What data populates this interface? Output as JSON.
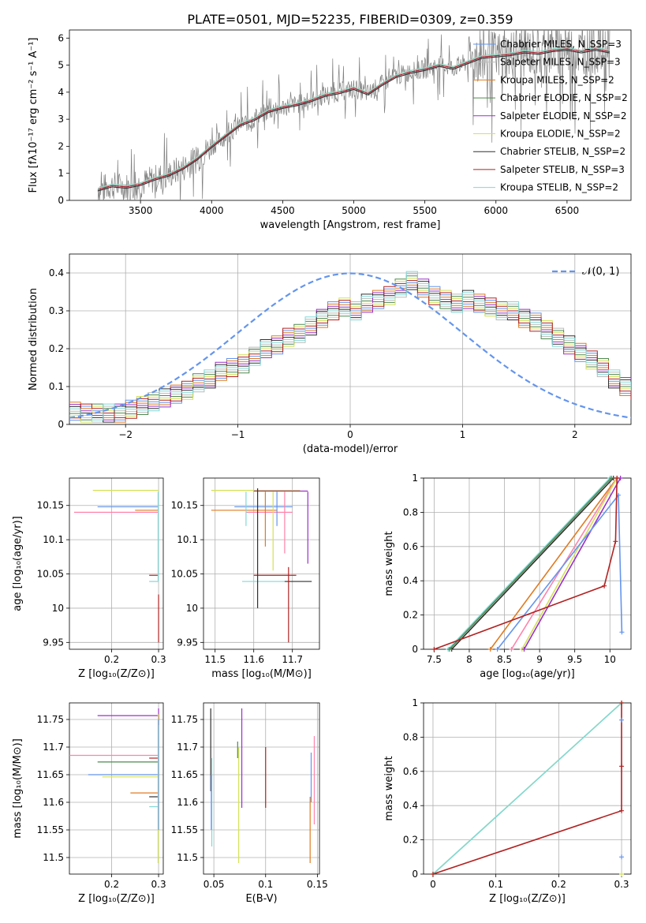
{
  "title": "PLATE=0501, MJD=52235, FIBERID=0309, z=0.359",
  "colors": {
    "Chabrier MILES": "#6495ed",
    "Salpeter MILES": "#bbbbbb",
    "Kroupa MILES": "#e07b20",
    "Chabrier ELODIE": "#4f8a4f",
    "Salpeter ELODIE": "#9b30c8",
    "Kroupa ELODIE": "#d4e157",
    "Chabrier STELIB": "#303030",
    "Salpeter STELIB": "#b22222",
    "Kroupa STELIB": "#80d8d8",
    "data": "#808080",
    "pink": "#ff82ab"
  },
  "chart_data": [
    {
      "type": "line",
      "title": "PLATE=0501, MJD=52235, FIBERID=0309, z=0.359",
      "xlabel": "wavelength [Angstrom, rest frame]",
      "ylabel": "Flux [fλ10⁻¹⁷ erg cm⁻² s⁻¹ A⁻¹]",
      "xlim": [
        3000,
        6950
      ],
      "ylim": [
        0,
        6.3
      ],
      "xticks": [
        3500,
        4000,
        4500,
        5000,
        5500,
        6000,
        6500
      ],
      "yticks": [
        0,
        1,
        2,
        3,
        4,
        5,
        6
      ],
      "legend_position": "top-right",
      "legend": [
        "Chabrier MILES, N_SSP=3",
        "Salpeter MILES, N_SSP=3",
        "Kroupa MILES, N_SSP=2",
        "Chabrier ELODIE, N_SSP=2",
        "Salpeter ELODIE, N_SSP=2",
        "Kroupa ELODIE, N_SSP=2",
        "Chabrier STELIB, N_SSP=2",
        "Salpeter STELIB, N_SSP=3",
        "Kroupa STELIB, N_SSP=2"
      ],
      "model_spectrum": {
        "x": [
          3200,
          3300,
          3400,
          3500,
          3600,
          3700,
          3800,
          3900,
          4000,
          4100,
          4200,
          4300,
          4400,
          4500,
          4600,
          4700,
          4800,
          4900,
          5000,
          5100,
          5200,
          5300,
          5400,
          5500,
          5600,
          5700,
          5800,
          5900,
          6000,
          6100,
          6200,
          6300,
          6400,
          6500,
          6600,
          6700,
          6800
        ],
        "y": [
          0.4,
          0.55,
          0.5,
          0.6,
          0.8,
          0.95,
          1.2,
          1.55,
          2.0,
          2.4,
          2.8,
          3.0,
          3.3,
          3.45,
          3.55,
          3.7,
          3.9,
          4.0,
          4.15,
          3.95,
          4.3,
          4.6,
          4.75,
          4.85,
          5.0,
          4.9,
          5.1,
          5.3,
          5.35,
          5.4,
          5.5,
          5.45,
          5.55,
          5.6,
          5.5,
          5.6,
          5.5
        ]
      }
    },
    {
      "type": "bar",
      "xlabel": "(data-model)/error",
      "ylabel": "Normed distribution",
      "xlim": [
        -2.5,
        2.5
      ],
      "ylim": [
        0,
        0.45
      ],
      "xticks": [
        -2,
        -1,
        0,
        1,
        2
      ],
      "yticks": [
        0.0,
        0.1,
        0.2,
        0.3,
        0.4
      ],
      "reference_curve": "𝒩(0, 1)",
      "legend_position": "top-right",
      "bin_width": 0.1,
      "bin_start": -2.5,
      "histogram": [
        0.035,
        0.03,
        0.03,
        0.03,
        0.03,
        0.04,
        0.05,
        0.06,
        0.07,
        0.08,
        0.09,
        0.11,
        0.12,
        0.14,
        0.15,
        0.16,
        0.18,
        0.2,
        0.21,
        0.23,
        0.24,
        0.26,
        0.28,
        0.3,
        0.31,
        0.3,
        0.32,
        0.33,
        0.34,
        0.36,
        0.38,
        0.36,
        0.34,
        0.33,
        0.32,
        0.33,
        0.32,
        0.31,
        0.3,
        0.3,
        0.28,
        0.27,
        0.25,
        0.23,
        0.21,
        0.19,
        0.17,
        0.15,
        0.12,
        0.1,
        0.09,
        0.08,
        0.07,
        0.06,
        0.05,
        0.05,
        0.04,
        0.04,
        0.03,
        0.03
      ]
    },
    {
      "type": "scatter",
      "xlabel": "Z [log₁₀(Z/Z⊙)]",
      "ylabel": "age  [log₁₀(age/yr)]",
      "xlim": [
        0.11,
        0.31
      ],
      "ylim": [
        9.94,
        10.19
      ],
      "xticks": [
        0.2,
        0.3
      ],
      "yticks": [
        9.95,
        10.0,
        10.05,
        10.1,
        10.15
      ],
      "segments": [
        {
          "c": "Kroupa ELODIE",
          "x": [
            0.16,
            0.3
          ],
          "y": 10.172
        },
        {
          "c": "Chabrier MILES",
          "x": [
            0.17,
            0.3
          ],
          "y": 10.148
        },
        {
          "c": "Kroupa MILES",
          "x": [
            0.25,
            0.3
          ],
          "y": 10.143
        },
        {
          "c": "pink",
          "x": [
            0.12,
            0.3
          ],
          "y": 10.14
        },
        {
          "c": "Salpeter STELIB",
          "x": [
            0.28,
            0.3
          ],
          "y": 10.048
        },
        {
          "c": "Kroupa STELIB",
          "x": [
            0.28,
            0.3
          ],
          "y": 10.039
        }
      ],
      "verticals": [
        {
          "c": "Kroupa STELIB",
          "x": 0.299,
          "y": [
            10.04,
            10.17
          ]
        },
        {
          "c": "Salpeter STELIB",
          "x": 0.3,
          "y": [
            9.95,
            10.02
          ]
        }
      ]
    },
    {
      "type": "scatter",
      "xlabel": "mass [log₁₀(M/M⊙)]",
      "ylabel": "",
      "xlim": [
        11.47,
        11.77
      ],
      "ylim": [
        9.94,
        10.19
      ],
      "xticks": [
        11.5,
        11.6,
        11.7
      ],
      "yticks": [
        9.95,
        10.0,
        10.05,
        10.1,
        10.15
      ],
      "segments": [
        {
          "c": "Kroupa ELODIE",
          "x": [
            11.49,
            11.72
          ],
          "y": 10.172
        },
        {
          "c": "Salpeter ELODIE",
          "x": [
            11.6,
            11.74
          ],
          "y": 10.171
        },
        {
          "c": "Chabrier MILES",
          "x": [
            11.55,
            11.7
          ],
          "y": 10.148
        },
        {
          "c": "Kroupa MILES",
          "x": [
            11.49,
            11.66
          ],
          "y": 10.143
        },
        {
          "c": "pink",
          "x": [
            11.58,
            11.7
          ],
          "y": 10.14
        },
        {
          "c": "Kroupa STELIB",
          "x": [
            11.57,
            11.7
          ],
          "y": 10.039
        },
        {
          "c": "Chabrier STELIB",
          "x": [
            11.68,
            11.75
          ],
          "y": 10.039
        },
        {
          "c": "Salpeter STELIB",
          "x": [
            11.6,
            11.71
          ],
          "y": 10.048
        }
      ],
      "verticals": [
        {
          "c": "Chabrier STELIB",
          "x": 11.61,
          "y": [
            10.0,
            10.175
          ]
        },
        {
          "c": "Salpeter STELIB",
          "x": 11.69,
          "y": [
            9.95,
            10.06
          ]
        },
        {
          "c": "Salpeter ELODIE",
          "x": 11.74,
          "y": [
            10.065,
            10.17
          ]
        },
        {
          "c": "Kroupa ELODIE",
          "x": 11.65,
          "y": [
            10.055,
            10.17
          ]
        },
        {
          "c": "Kroupa MILES",
          "x": 11.63,
          "y": [
            10.09,
            10.17
          ]
        },
        {
          "c": "pink",
          "x": 11.68,
          "y": [
            10.08,
            10.17
          ]
        },
        {
          "c": "Chabrier MILES",
          "x": 11.66,
          "y": [
            10.12,
            10.17
          ]
        },
        {
          "c": "Kroupa STELIB",
          "x": 11.58,
          "y": [
            10.12,
            10.17
          ]
        }
      ]
    },
    {
      "type": "line",
      "xlabel": "age  [log₁₀(age/yr)]",
      "ylabel": "mass weight",
      "xlim": [
        7.35,
        10.3
      ],
      "ylim": [
        0,
        1.0
      ],
      "xticks": [
        7.5,
        8.0,
        8.5,
        9.0,
        9.5,
        10.0
      ],
      "yticks": [
        0.0,
        0.2,
        0.4,
        0.6,
        0.8,
        1.0
      ],
      "series": [
        {
          "c": "Kroupa STELIB",
          "x": [
            7.7,
            10.0
          ],
          "y": [
            0.0,
            1.0
          ]
        },
        {
          "c": "Chabrier STELIB",
          "x": [
            7.75,
            10.05
          ],
          "y": [
            0.0,
            1.0
          ]
        },
        {
          "c": "Chabrier ELODIE",
          "x": [
            7.72,
            10.02
          ],
          "y": [
            0.0,
            1.0
          ]
        },
        {
          "c": "Kroupa MILES",
          "x": [
            8.3,
            10.1
          ],
          "y": [
            0.0,
            1.0
          ]
        },
        {
          "c": "pink",
          "x": [
            8.6,
            10.1
          ],
          "y": [
            0.0,
            1.0
          ]
        },
        {
          "c": "Kroupa ELODIE",
          "x": [
            8.75,
            10.1
          ],
          "y": [
            0.0,
            1.0
          ]
        },
        {
          "c": "Salpeter ELODIE",
          "x": [
            8.78,
            10.15
          ],
          "y": [
            0.0,
            1.0
          ]
        },
        {
          "c": "Chabrier MILES",
          "x": [
            8.4,
            10.12,
            10.17
          ],
          "y": [
            0.0,
            0.9,
            0.1
          ]
        },
        {
          "c": "Salpeter STELIB",
          "x": [
            7.5,
            9.92,
            10.08,
            10.1
          ],
          "y": [
            0.0,
            0.37,
            0.63,
            1.0
          ]
        }
      ]
    },
    {
      "type": "scatter",
      "xlabel": "Z [log₁₀(Z/Z⊙)]",
      "ylabel": "mass [log₁₀(M/M⊙)]",
      "xlim": [
        0.11,
        0.31
      ],
      "ylim": [
        11.47,
        11.78
      ],
      "xticks": [
        0.2,
        0.3
      ],
      "yticks": [
        11.5,
        11.55,
        11.6,
        11.65,
        11.7,
        11.75
      ],
      "segments": [
        {
          "c": "Salpeter ELODIE",
          "x": [
            0.17,
            0.3
          ],
          "y": 11.757
        },
        {
          "c": "pink",
          "x": [
            0.11,
            0.3
          ],
          "y": 11.685
        },
        {
          "c": "Salpeter STELIB",
          "x": [
            0.28,
            0.3
          ],
          "y": 11.68
        },
        {
          "c": "Chabrier ELODIE",
          "x": [
            0.17,
            0.3
          ],
          "y": 11.673
        },
        {
          "c": "Chabrier MILES",
          "x": [
            0.15,
            0.3
          ],
          "y": 11.65
        },
        {
          "c": "Kroupa ELODIE",
          "x": [
            0.18,
            0.3
          ],
          "y": 11.646
        },
        {
          "c": "Kroupa MILES",
          "x": [
            0.24,
            0.3
          ],
          "y": 11.617
        },
        {
          "c": "Chabrier STELIB",
          "x": [
            0.28,
            0.3
          ],
          "y": 11.61
        },
        {
          "c": "Kroupa STELIB",
          "x": [
            0.28,
            0.3
          ],
          "y": 11.592
        }
      ],
      "verticals": [
        {
          "c": "Salpeter ELODIE",
          "x": 0.3,
          "y": [
            11.74,
            11.77
          ]
        },
        {
          "c": "Kroupa ELODIE",
          "x": 0.299,
          "y": [
            11.49,
            11.76
          ]
        },
        {
          "c": "Chabrier MILES",
          "x": 0.3,
          "y": [
            11.55,
            11.75
          ]
        }
      ]
    },
    {
      "type": "scatter",
      "xlabel": "E(B-V)",
      "ylabel": "",
      "xlim": [
        0.04,
        0.152
      ],
      "ylim": [
        11.47,
        11.78
      ],
      "xticks": [
        0.05,
        0.1,
        0.15
      ],
      "yticks": [
        11.5,
        11.55,
        11.6,
        11.65,
        11.7,
        11.75
      ],
      "verticals": [
        {
          "c": "Chabrier STELIB",
          "x": 0.047,
          "y": [
            11.62,
            11.77
          ]
        },
        {
          "c": "Kroupa STELIB",
          "x": 0.048,
          "y": [
            11.52,
            11.68
          ]
        },
        {
          "c": "Chabrier MILES",
          "x": 0.0475,
          "y": [
            11.55,
            11.65
          ]
        },
        {
          "c": "Chabrier ELODIE",
          "x": 0.073,
          "y": [
            11.68,
            11.71
          ]
        },
        {
          "c": "Kroupa ELODIE",
          "x": 0.074,
          "y": [
            11.49,
            11.7
          ]
        },
        {
          "c": "Salpeter ELODIE",
          "x": 0.077,
          "y": [
            11.59,
            11.77
          ]
        },
        {
          "c": "Salpeter STELIB",
          "x": 0.1,
          "y": [
            11.59,
            11.7
          ]
        },
        {
          "c": "Kroupa MILES",
          "x": 0.143,
          "y": [
            11.49,
            11.61
          ]
        },
        {
          "c": "Chabrier MILES",
          "x": 0.144,
          "y": [
            11.6,
            11.69
          ]
        },
        {
          "c": "pink",
          "x": 0.147,
          "y": [
            11.56,
            11.72
          ]
        }
      ]
    },
    {
      "type": "line",
      "xlabel": "Z [log₁₀(Z/Z⊙)]",
      "ylabel": "mass weight",
      "xlim": [
        -0.015,
        0.315
      ],
      "ylim": [
        0,
        1.0
      ],
      "xticks": [
        0.0,
        0.1,
        0.2,
        0.3
      ],
      "yticks": [
        0.0,
        0.2,
        0.4,
        0.6,
        0.8,
        1.0
      ],
      "series": [
        {
          "c": "Kroupa ELODIE",
          "x": [
            0.0,
            0.3
          ],
          "y": [
            0.0,
            1.0
          ]
        },
        {
          "c": "Kroupa STELIB",
          "x": [
            0.0,
            0.3
          ],
          "y": [
            0.0,
            1.0
          ]
        },
        {
          "c": "Salpeter STELIB",
          "x": [
            0.0,
            0.3,
            0.3,
            0.3
          ],
          "y": [
            0.0,
            0.37,
            0.63,
            1.0
          ]
        }
      ],
      "markers": [
        {
          "c": "Chabrier MILES",
          "x": 0.3,
          "y": 0.9
        },
        {
          "c": "Chabrier MILES",
          "x": 0.3,
          "y": 0.1
        },
        {
          "c": "Kroupa ELODIE",
          "x": 0.3,
          "y": 0.0
        }
      ]
    }
  ]
}
